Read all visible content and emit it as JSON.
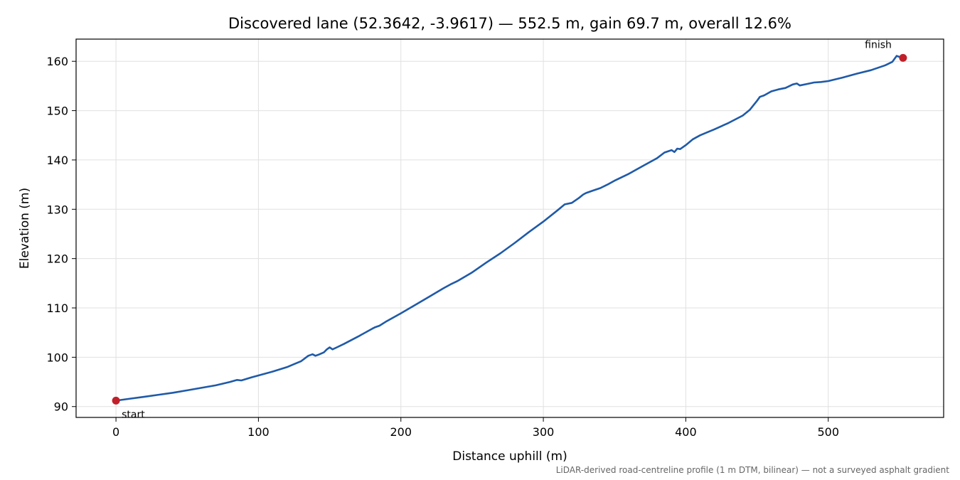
{
  "chart_data": {
    "type": "line",
    "title": "Discovered lane (52.3642, -3.9617) — 552.5 m, gain 69.7 m, overall 12.6%",
    "xlabel": "Distance uphill (m)",
    "ylabel": "Elevation (m)",
    "xlim": [
      -28,
      581
    ],
    "ylim": [
      87.8,
      164.5
    ],
    "xticks": [
      0,
      100,
      200,
      300,
      400,
      500
    ],
    "yticks": [
      90,
      100,
      110,
      120,
      130,
      140,
      150,
      160
    ],
    "grid": true,
    "footnote": "LiDAR-derived road-centreline profile (1 m DTM, bilinear) — not a surveyed asphalt gradient",
    "colors": {
      "line": "#1f5aa8",
      "marker": "#c0202a",
      "grid": "#e0e0e0"
    },
    "series": [
      {
        "x": [
          0,
          10,
          20,
          30,
          40,
          50,
          60,
          70,
          80,
          85,
          88,
          95,
          100,
          110,
          120,
          125,
          130,
          135,
          138,
          140,
          142,
          146,
          148,
          150,
          152,
          155,
          160,
          170,
          180,
          182,
          185,
          190,
          200,
          210,
          220,
          230,
          235,
          240,
          250,
          260,
          270,
          280,
          290,
          300,
          310,
          315,
          320,
          325,
          328,
          330,
          335,
          340,
          345,
          350,
          360,
          370,
          380,
          385,
          390,
          392,
          394,
          396,
          400,
          405,
          410,
          415,
          420,
          430,
          440,
          445,
          450,
          452,
          455,
          460,
          465,
          470,
          475,
          478,
          480,
          485,
          490,
          495,
          500,
          510,
          520,
          530,
          540,
          545,
          548,
          552
        ],
        "y": [
          91.2,
          91.6,
          92.0,
          92.4,
          92.8,
          93.3,
          93.8,
          94.3,
          95.0,
          95.4,
          95.3,
          95.9,
          96.3,
          97.1,
          98.0,
          98.6,
          99.2,
          100.3,
          100.6,
          100.3,
          100.5,
          101.0,
          101.6,
          102.0,
          101.6,
          102.0,
          102.7,
          104.2,
          105.8,
          106.1,
          106.4,
          107.3,
          108.9,
          110.6,
          112.3,
          114.0,
          114.8,
          115.5,
          117.2,
          119.2,
          121.1,
          123.2,
          125.4,
          127.5,
          129.8,
          131.0,
          131.3,
          132.3,
          133.0,
          133.3,
          133.8,
          134.3,
          135.0,
          135.8,
          137.2,
          138.8,
          140.4,
          141.5,
          142.0,
          141.6,
          142.3,
          142.2,
          143.0,
          144.2,
          145.0,
          145.6,
          146.2,
          147.5,
          149.0,
          150.2,
          152.0,
          152.8,
          153.1,
          153.9,
          154.3,
          154.6,
          155.3,
          155.5,
          155.1,
          155.4,
          155.7,
          155.8,
          156.0,
          156.7,
          157.5,
          158.2,
          159.2,
          159.9,
          161.1,
          160.7
        ]
      }
    ],
    "annotations": [
      {
        "label": "start",
        "x": 0,
        "y": 91.2
      },
      {
        "label": "finish",
        "x": 552.5,
        "y": 160.7
      }
    ]
  }
}
